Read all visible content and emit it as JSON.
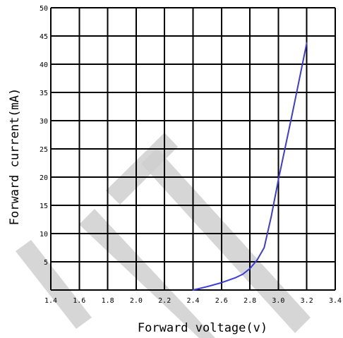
{
  "chart_data": {
    "type": "line",
    "title": "",
    "xlabel": "Forward voltage(v)",
    "ylabel": "Forward current(mA)",
    "xlim": [
      1.4,
      3.4
    ],
    "ylim": [
      0,
      50
    ],
    "x_ticks": [
      "1.4",
      "1.6",
      "1.8",
      "2.0",
      "2.2",
      "2.4",
      "2.6",
      "2.8",
      "3.0",
      "3.2",
      "3.4"
    ],
    "y_ticks": [
      "5",
      "10",
      "15",
      "20",
      "25",
      "30",
      "35",
      "40",
      "45",
      "50"
    ],
    "grid": true,
    "series": [
      {
        "color": "#3c3cd8",
        "x": [
          2.4,
          2.5,
          2.6,
          2.7,
          2.75,
          2.8,
          2.85,
          2.9,
          2.95,
          3.0,
          3.1,
          3.2
        ],
        "y": [
          0,
          0.6,
          1.3,
          2.2,
          2.8,
          3.8,
          5.3,
          7.5,
          13,
          19.5,
          31.5,
          43.8
        ]
      }
    ]
  }
}
